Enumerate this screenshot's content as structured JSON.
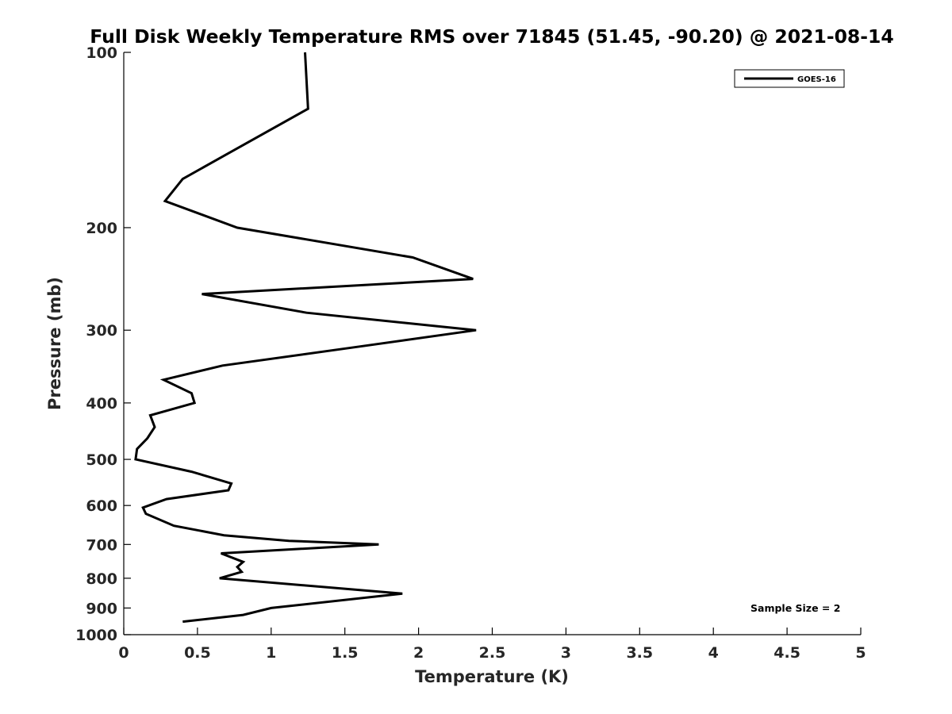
{
  "chart_data": {
    "type": "line",
    "title": "Full Disk Weekly Temperature RMS over 71845 (51.45, -90.20) @ 2021-08-14",
    "xlabel": "Temperature (K)",
    "ylabel": "Pressure (mb)",
    "xlim": [
      0,
      5
    ],
    "ylim": [
      100,
      1000
    ],
    "y_scale": "log",
    "y_reversed": true,
    "x_ticks": [
      "0",
      "0.5",
      "1",
      "1.5",
      "2",
      "2.5",
      "3",
      "3.5",
      "4",
      "4.5",
      "5"
    ],
    "y_ticks": [
      "100",
      "200",
      "300",
      "400",
      "500",
      "600",
      "700",
      "800",
      "900",
      "1000"
    ],
    "grid": false,
    "legend_position": "top-right",
    "line_color": "#000000",
    "annotation": "Sample Size = 2",
    "series": [
      {
        "name": "GOES-16",
        "points": [
          [
            1.23,
            100
          ],
          [
            1.25,
            125
          ],
          [
            0.69,
            150
          ],
          [
            0.4,
            165
          ],
          [
            0.28,
            180
          ],
          [
            0.77,
            200
          ],
          [
            1.96,
            225
          ],
          [
            2.37,
            245
          ],
          [
            0.53,
            260
          ],
          [
            1.24,
            280
          ],
          [
            2.39,
            300
          ],
          [
            1.6,
            320
          ],
          [
            0.67,
            345
          ],
          [
            0.27,
            365
          ],
          [
            0.46,
            385
          ],
          [
            0.48,
            400
          ],
          [
            0.18,
            420
          ],
          [
            0.21,
            440
          ],
          [
            0.16,
            460
          ],
          [
            0.09,
            480
          ],
          [
            0.08,
            500
          ],
          [
            0.46,
            525
          ],
          [
            0.73,
            550
          ],
          [
            0.71,
            565
          ],
          [
            0.29,
            585
          ],
          [
            0.13,
            605
          ],
          [
            0.15,
            620
          ],
          [
            0.34,
            650
          ],
          [
            0.68,
            675
          ],
          [
            1.12,
            690
          ],
          [
            1.73,
            700
          ],
          [
            0.66,
            725
          ],
          [
            0.81,
            750
          ],
          [
            0.77,
            765
          ],
          [
            0.8,
            780
          ],
          [
            0.65,
            800
          ],
          [
            1.89,
            850
          ],
          [
            1.0,
            900
          ],
          [
            0.81,
            925
          ],
          [
            0.4,
            950
          ]
        ]
      }
    ]
  }
}
